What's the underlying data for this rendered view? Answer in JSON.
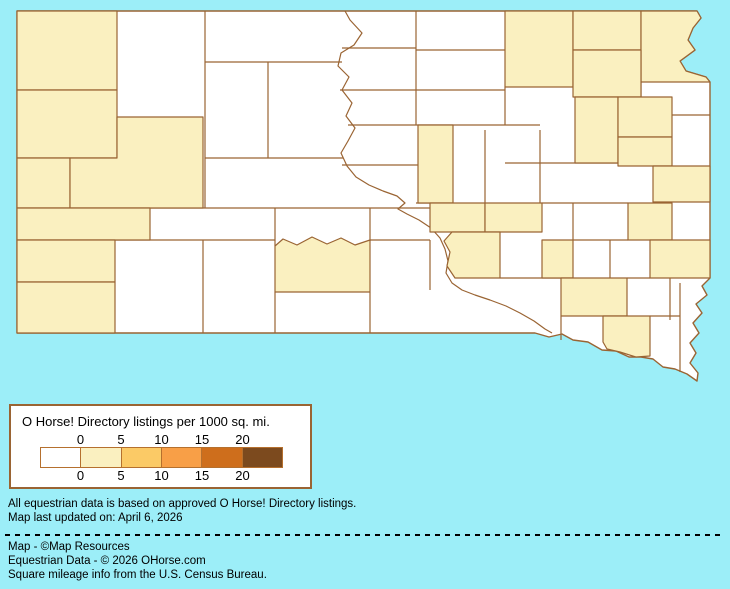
{
  "colors": {
    "background_water": "#9CEEF8",
    "county_border": "#9A6433",
    "legend_border": "#9A6433",
    "swatch_border": "#B5702E",
    "text": "#000000"
  },
  "legend": {
    "title": "O Horse! Directory listings per 1000 sq. mi.",
    "ticks": [
      "0",
      "5",
      "10",
      "15",
      "20"
    ],
    "colors": [
      "#FFFFFF",
      "#FAF0C0",
      "#FBCA66",
      "#F89F47",
      "#CE6E1C",
      "#7C4A1E"
    ]
  },
  "footer": {
    "notes": [
      "All equestrian data is based on approved O Horse! Directory listings.",
      "Map last updated on: April 6, 2026"
    ],
    "credits": [
      "Map - ©Map Resources",
      "Equestrian Data - © 2026 OHorse.com",
      "Square mileage info from the U.S. Census Bureau."
    ]
  },
  "chart_data": {
    "type": "choropleth",
    "title": "O Horse! Directory listings per 1000 sq. mi.",
    "geography": "South Dakota county map",
    "legend_ticks": [
      0,
      5,
      10,
      15,
      20
    ],
    "bin_ranges": [
      "0",
      "0-5",
      "5-10",
      "10-15",
      "15-20",
      "20+"
    ],
    "bin_colors": [
      "#FFFFFF",
      "#FAF0C0",
      "#FBCA66",
      "#F89F47",
      "#CE6E1C",
      "#7C4A1E"
    ],
    "fill_levels": {
      "0": "#FFFFFF",
      "0-5": "#FAF0C0"
    },
    "default_bin": "0",
    "regions": [
      {
        "id": "nw1",
        "bin": "0-5"
      },
      {
        "id": "nw2",
        "bin": "0-5"
      },
      {
        "id": "nw3",
        "bin": "0-5"
      },
      {
        "id": "nw4",
        "bin": "0-5"
      },
      {
        "id": "w1",
        "bin": "0-5"
      },
      {
        "id": "sw1",
        "bin": "0-5"
      },
      {
        "id": "sw2",
        "bin": "0-5"
      },
      {
        "id": "sc1",
        "bin": "0-5"
      },
      {
        "id": "c1",
        "bin": "0-5"
      },
      {
        "id": "ne1",
        "bin": "0-5"
      },
      {
        "id": "ne2",
        "bin": "0-5"
      },
      {
        "id": "ne3",
        "bin": "0-5"
      },
      {
        "id": "ne4",
        "bin": "0-5"
      },
      {
        "id": "ne5",
        "bin": "0-5"
      },
      {
        "id": "ne6",
        "bin": "0-5"
      },
      {
        "id": "ne7",
        "bin": "0-5"
      },
      {
        "id": "e1",
        "bin": "0-5"
      },
      {
        "id": "c2",
        "bin": "0-5"
      },
      {
        "id": "c3",
        "bin": "0-5"
      },
      {
        "id": "c4",
        "bin": "0-5"
      },
      {
        "id": "c5",
        "bin": "0-5"
      },
      {
        "id": "e2",
        "bin": "0-5"
      },
      {
        "id": "e3",
        "bin": "0-5"
      },
      {
        "id": "se1",
        "bin": "0-5"
      },
      {
        "id": "se2",
        "bin": "0-5"
      }
    ]
  }
}
